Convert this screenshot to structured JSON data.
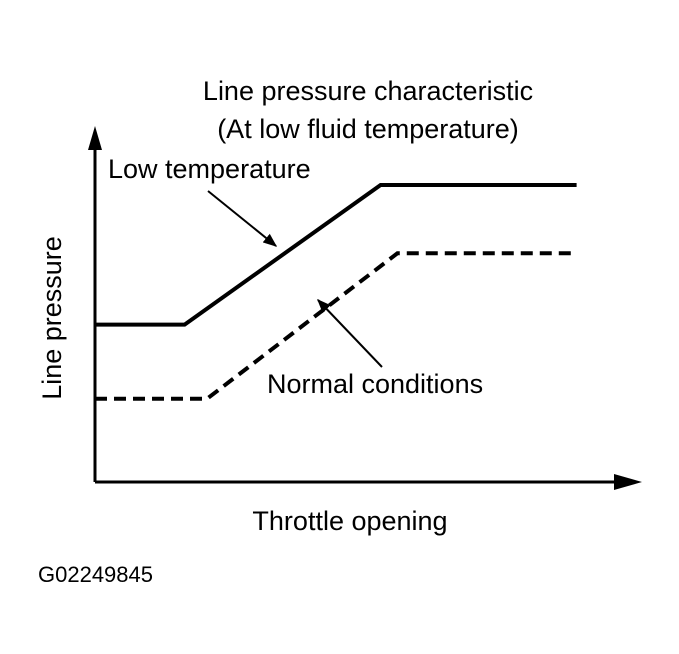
{
  "chart_data": {
    "type": "line",
    "title": "Line pressure characteristic",
    "subtitle": "(At low fluid temperature)",
    "xlabel": "Throttle opening",
    "ylabel": "Line pressure",
    "xlim": [
      0,
      100
    ],
    "ylim": [
      0,
      100
    ],
    "grid": false,
    "legend": "none",
    "series": [
      {
        "name": "Low temperature",
        "style": "solid",
        "x": [
          0,
          16,
          51,
          86
        ],
        "y": [
          53,
          53,
          100,
          100
        ]
      },
      {
        "name": "Normal conditions",
        "style": "dashed",
        "x": [
          0,
          20,
          54,
          86
        ],
        "y": [
          28,
          28,
          77,
          77
        ]
      }
    ],
    "annotations": [
      {
        "text": "Low temperature",
        "series": 0
      },
      {
        "text": "Normal conditions",
        "series": 1
      }
    ]
  },
  "figure_id": "G02249845"
}
